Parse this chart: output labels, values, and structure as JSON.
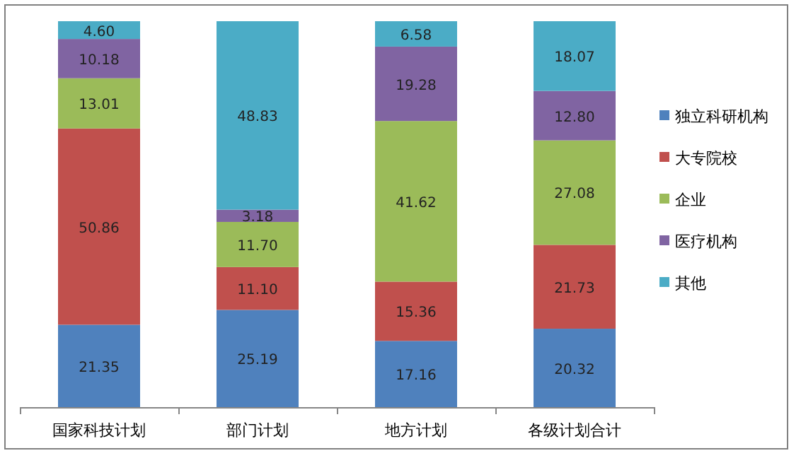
{
  "chart_data": {
    "type": "bar",
    "stacked": true,
    "legend": "right",
    "categories": [
      "国家科技计划",
      "部门计划",
      "地方计划",
      "各级计划合计"
    ],
    "series": [
      {
        "name": "独立科研机构",
        "color": "#4f81bd",
        "values": [
          21.35,
          25.19,
          17.16,
          20.32
        ],
        "value_labels": [
          "21.35",
          "25.19",
          "17.16",
          "20.32"
        ]
      },
      {
        "name": "大专院校",
        "color": "#c0504d",
        "values": [
          50.86,
          11.1,
          15.36,
          21.73
        ],
        "value_labels": [
          "50.86",
          "11.10",
          "15.36",
          "21.73"
        ]
      },
      {
        "name": "企业",
        "color": "#9bbb59",
        "values": [
          13.01,
          11.7,
          41.62,
          27.08
        ],
        "value_labels": [
          "13.01",
          "11.70",
          "41.62",
          "27.08"
        ]
      },
      {
        "name": "医疗机构",
        "color": "#8064a2",
        "values": [
          10.18,
          3.18,
          19.28,
          12.8
        ],
        "value_labels": [
          "10.18",
          "3.18",
          "19.28",
          "12.80"
        ]
      },
      {
        "name": "其他",
        "color": "#4bacc6",
        "values": [
          4.6,
          48.83,
          6.58,
          18.07
        ],
        "value_labels": [
          "4.60",
          "48.83",
          "6.58",
          "18.07"
        ]
      }
    ]
  }
}
